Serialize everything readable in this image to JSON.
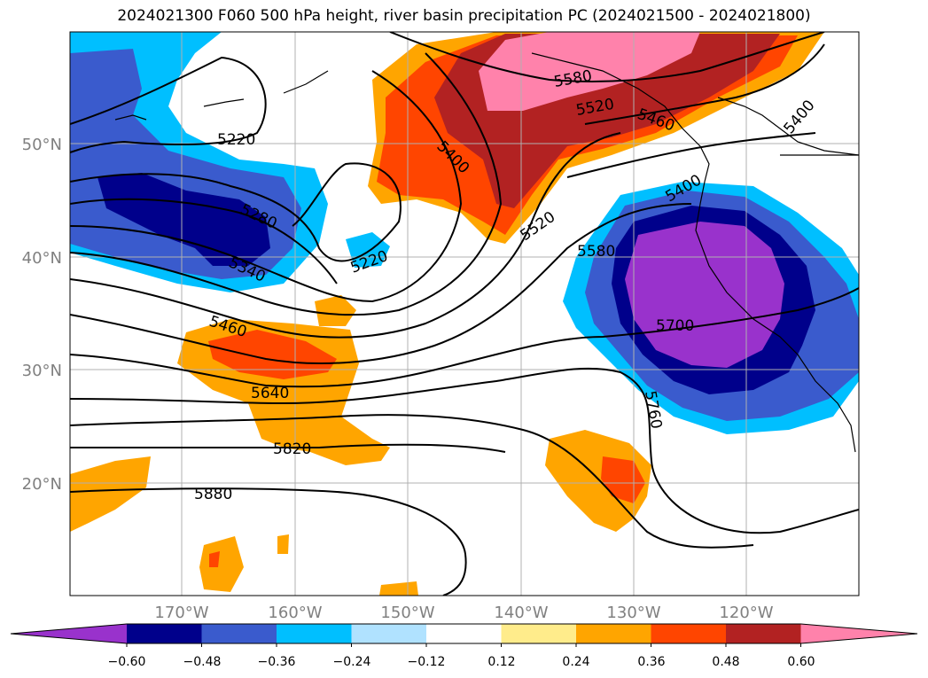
{
  "title": "2024021300 F060 500 hPa height, river basin precipitation PC (2024021500 - 2024021800)",
  "map": {
    "lat_labels": [
      "50°N",
      "40°N",
      "30°N",
      "20°N"
    ],
    "lon_labels": [
      "170°W",
      "160°W",
      "150°W",
      "140°W",
      "130°W",
      "120°W"
    ],
    "contour_labels": [
      "5220",
      "5220",
      "5280",
      "5340",
      "5460",
      "5640",
      "5820",
      "5880",
      "5400",
      "5520",
      "5580",
      "5580",
      "5520",
      "5460",
      "5400",
      "5400",
      "5700",
      "5760"
    ]
  },
  "colorbar": {
    "ticks": [
      "−0.60",
      "−0.48",
      "−0.36",
      "−0.24",
      "−0.12",
      "0.12",
      "0.24",
      "0.36",
      "0.48",
      "0.60"
    ],
    "colors": [
      "#9932cc",
      "#00008b",
      "#3a5bcd",
      "#00bfff",
      "#b0e2ff",
      "#ffffff",
      "#ffec8b",
      "#ffa500",
      "#ff4500",
      "#b22222",
      "#ff82ab"
    ]
  }
}
